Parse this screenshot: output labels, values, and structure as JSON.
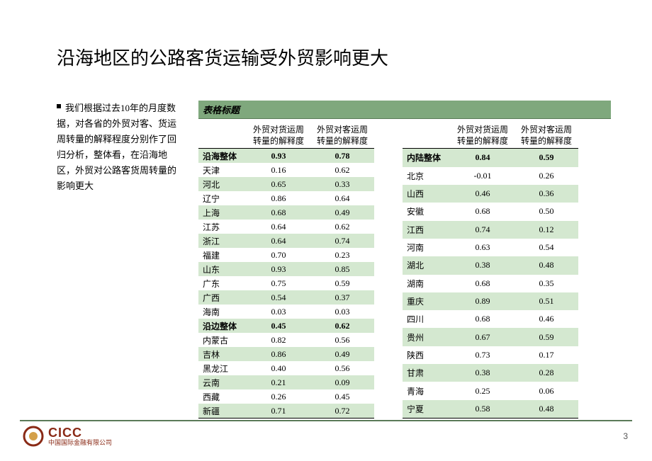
{
  "title": "沿海地区的公路客货运输受外贸影响更大",
  "bullet_text": "我们根据过去10年的月度数据，对各省的外贸对客、货运周转量的解释程度分别作了回归分析，整体看，在沿海地区，外贸对公路客货周转量的影响更大",
  "table_caption": "表格标题",
  "col_headers": {
    "region_blank": "",
    "freight": "外贸对货运周转量的解释度",
    "passenger": "外贸对客运周转量的解释度"
  },
  "left_table": {
    "rows": [
      {
        "region": "沿海整体",
        "v1": "0.93",
        "v2": "0.78",
        "bold": true,
        "stripe": true
      },
      {
        "region": "天津",
        "v1": "0.16",
        "v2": "0.62",
        "bold": false,
        "stripe": false
      },
      {
        "region": "河北",
        "v1": "0.65",
        "v2": "0.33",
        "bold": false,
        "stripe": true
      },
      {
        "region": "辽宁",
        "v1": "0.86",
        "v2": "0.64",
        "bold": false,
        "stripe": false
      },
      {
        "region": "上海",
        "v1": "0.68",
        "v2": "0.49",
        "bold": false,
        "stripe": true
      },
      {
        "region": "江苏",
        "v1": "0.64",
        "v2": "0.62",
        "bold": false,
        "stripe": false
      },
      {
        "region": "浙江",
        "v1": "0.64",
        "v2": "0.74",
        "bold": false,
        "stripe": true
      },
      {
        "region": "福建",
        "v1": "0.70",
        "v2": "0.23",
        "bold": false,
        "stripe": false
      },
      {
        "region": "山东",
        "v1": "0.93",
        "v2": "0.85",
        "bold": false,
        "stripe": true
      },
      {
        "region": "广东",
        "v1": "0.75",
        "v2": "0.59",
        "bold": false,
        "stripe": false
      },
      {
        "region": "广西",
        "v1": "0.54",
        "v2": "0.37",
        "bold": false,
        "stripe": true
      },
      {
        "region": "海南",
        "v1": "0.03",
        "v2": "0.03",
        "bold": false,
        "stripe": false
      },
      {
        "region": "沿边整体",
        "v1": "0.45",
        "v2": "0.62",
        "bold": true,
        "stripe": true
      },
      {
        "region": "内蒙古",
        "v1": "0.82",
        "v2": "0.56",
        "bold": false,
        "stripe": false
      },
      {
        "region": "吉林",
        "v1": "0.86",
        "v2": "0.49",
        "bold": false,
        "stripe": true
      },
      {
        "region": "黑龙江",
        "v1": "0.40",
        "v2": "0.56",
        "bold": false,
        "stripe": false
      },
      {
        "region": "云南",
        "v1": "0.21",
        "v2": "0.09",
        "bold": false,
        "stripe": true
      },
      {
        "region": "西藏",
        "v1": "0.26",
        "v2": "0.45",
        "bold": false,
        "stripe": false
      },
      {
        "region": "新疆",
        "v1": "0.71",
        "v2": "0.72",
        "bold": false,
        "stripe": true
      }
    ]
  },
  "right_table": {
    "rows": [
      {
        "region": "内陆整体",
        "v1": "0.84",
        "v2": "0.59",
        "bold": true,
        "stripe": true
      },
      {
        "region": "北京",
        "v1": "-0.01",
        "v2": "0.26",
        "bold": false,
        "stripe": false
      },
      {
        "region": "山西",
        "v1": "0.46",
        "v2": "0.36",
        "bold": false,
        "stripe": true
      },
      {
        "region": "安徽",
        "v1": "0.68",
        "v2": "0.50",
        "bold": false,
        "stripe": false
      },
      {
        "region": "江西",
        "v1": "0.74",
        "v2": "0.12",
        "bold": false,
        "stripe": true
      },
      {
        "region": "河南",
        "v1": "0.63",
        "v2": "0.54",
        "bold": false,
        "stripe": false
      },
      {
        "region": "湖北",
        "v1": "0.38",
        "v2": "0.48",
        "bold": false,
        "stripe": true
      },
      {
        "region": "湖南",
        "v1": "0.68",
        "v2": "0.35",
        "bold": false,
        "stripe": false
      },
      {
        "region": "重庆",
        "v1": "0.89",
        "v2": "0.51",
        "bold": false,
        "stripe": true
      },
      {
        "region": "四川",
        "v1": "0.68",
        "v2": "0.46",
        "bold": false,
        "stripe": false
      },
      {
        "region": "贵州",
        "v1": "0.67",
        "v2": "0.59",
        "bold": false,
        "stripe": true
      },
      {
        "region": "陕西",
        "v1": "0.73",
        "v2": "0.17",
        "bold": false,
        "stripe": false
      },
      {
        "region": "甘肃",
        "v1": "0.38",
        "v2": "0.28",
        "bold": false,
        "stripe": true
      },
      {
        "region": "青海",
        "v1": "0.25",
        "v2": "0.06",
        "bold": false,
        "stripe": false
      },
      {
        "region": "宁夏",
        "v1": "0.58",
        "v2": "0.48",
        "bold": false,
        "stripe": true
      }
    ]
  },
  "logo": {
    "en": "CICC",
    "zh": "中国国际金融有限公司"
  },
  "page_number": "3",
  "colors": {
    "stripe": "#d4e8d0",
    "header_bar": "#7fa87d",
    "rule": "#5a7a58",
    "logo": "#8a2a16"
  }
}
